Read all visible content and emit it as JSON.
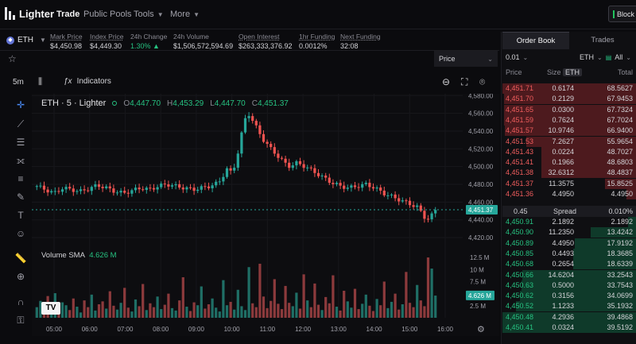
{
  "nav": {
    "brand": "Lighter",
    "items": [
      "Trade",
      "Public Pools",
      "Tools",
      "More"
    ],
    "block_button": "Block"
  },
  "market": {
    "symbol": "ETH",
    "stats": [
      {
        "label": "Mark Price",
        "value": "$4,450.98"
      },
      {
        "label": "Index Price",
        "value": "$4,449.30"
      },
      {
        "label": "24h Change",
        "value": "1.30% ▲"
      },
      {
        "label": "24h Volume",
        "value": "$1,506,572,594.69"
      },
      {
        "label": "Open Interest",
        "value": "$263,333,376.92"
      },
      {
        "label": "1hr Funding",
        "value": "0.0012%"
      },
      {
        "label": "Next Funding",
        "value": "32:08"
      }
    ],
    "price_select": "Price"
  },
  "chart_toolbar": {
    "timeframe": "5m",
    "indicators_label": "Indicators"
  },
  "chart_data": {
    "type": "candlestick",
    "title": "ETH · 5 · Lighter",
    "ohlc_labels": {
      "o": "O",
      "h": "H",
      "l": "L",
      "c": "C"
    },
    "ohlc_values": {
      "o": "4,447.70",
      "h": "4,453.29",
      "l": "4,447.70",
      "c": "4,451.37"
    },
    "current_price": "4,451.37",
    "price_ticks": [
      "4,580.00",
      "4,560.00",
      "4,540.00",
      "4,520.00",
      "4,500.00",
      "4,480.00",
      "4,460.00",
      "4,440.00",
      "4,420.00"
    ],
    "price_range": [
      4412,
      4582
    ],
    "time_ticks": [
      "05:00",
      "06:00",
      "07:00",
      "08:00",
      "09:00",
      "10:00",
      "11:00",
      "12:00",
      "13:00",
      "14:00",
      "15:00",
      "16:00"
    ],
    "volume_label": "Volume SMA",
    "volume_sma": "4.626 M",
    "volume_ticks": [
      "12.5 M",
      "10 M",
      "7.5 M",
      "5 M",
      "2.5 M"
    ],
    "volume_current": "4.626 M",
    "volume_range": [
      0,
      13.5
    ],
    "close_path": [
      [
        0,
        4478
      ],
      [
        4,
        4474
      ],
      [
        8,
        4470
      ],
      [
        12,
        4476
      ],
      [
        16,
        4474
      ],
      [
        20,
        4472
      ],
      [
        24,
        4475
      ],
      [
        28,
        4479
      ],
      [
        32,
        4476
      ],
      [
        36,
        4472
      ],
      [
        40,
        4470
      ],
      [
        44,
        4473
      ],
      [
        48,
        4476
      ],
      [
        52,
        4474
      ],
      [
        56,
        4478
      ],
      [
        60,
        4480
      ],
      [
        64,
        4478
      ],
      [
        68,
        4476
      ],
      [
        72,
        4474
      ],
      [
        76,
        4476
      ],
      [
        80,
        4478
      ],
      [
        84,
        4482
      ],
      [
        86,
        4490
      ],
      [
        88,
        4498
      ],
      [
        90,
        4492
      ],
      [
        92,
        4506
      ],
      [
        94,
        4530
      ],
      [
        96,
        4555
      ],
      [
        97,
        4548
      ],
      [
        98,
        4560
      ],
      [
        100,
        4550
      ],
      [
        104,
        4532
      ],
      [
        108,
        4520
      ],
      [
        112,
        4510
      ],
      [
        116,
        4500
      ],
      [
        120,
        4504
      ],
      [
        124,
        4500
      ],
      [
        128,
        4494
      ],
      [
        132,
        4488
      ],
      [
        136,
        4482
      ],
      [
        140,
        4478
      ],
      [
        144,
        4476
      ],
      [
        148,
        4478
      ],
      [
        152,
        4480
      ],
      [
        156,
        4476
      ],
      [
        160,
        4470
      ],
      [
        164,
        4466
      ],
      [
        168,
        4462
      ],
      [
        172,
        4458
      ],
      [
        176,
        4454
      ],
      [
        178,
        4446
      ],
      [
        180,
        4440
      ],
      [
        182,
        4444
      ],
      [
        184,
        4451
      ]
    ],
    "volume_bars": [
      2.2,
      3.5,
      1.2,
      4.5,
      2.0,
      5.1,
      1.4,
      3.2,
      2.6,
      1.6,
      4.0,
      2.3,
      1.1,
      3.6,
      2.2,
      4.8,
      1.5,
      2.8,
      3.4,
      1.9,
      5.5,
      2.5,
      1.7,
      3.1,
      6.2,
      2.1,
      1.3,
      3.8,
      2.4,
      7.0,
      1.6,
      3.0,
      2.2,
      4.4,
      1.8,
      2.7,
      5.0,
      2.0,
      1.5,
      3.6,
      8.4,
      2.3,
      1.4,
      3.2,
      2.6,
      6.5,
      1.9,
      2.8,
      4.0,
      2.1,
      1.3,
      7.8,
      2.6,
      3.3,
      1.7,
      5.8,
      2.4,
      1.6,
      10.5,
      3.0,
      2.2,
      11.2,
      4.4,
      2.0,
      3.5,
      8.0,
      2.9,
      1.8,
      6.6,
      3.1,
      2.4,
      5.2,
      1.9,
      9.0,
      3.6,
      2.2,
      7.1,
      2.7,
      1.6,
      4.3,
      3.0,
      8.8,
      2.3,
      1.5,
      5.6,
      3.4,
      2.1,
      6.0,
      1.8,
      2.9,
      4.8,
      2.5,
      1.4,
      3.9,
      2.6,
      7.5,
      2.0,
      3.3,
      5.0,
      1.7,
      2.8,
      9.5,
      3.1,
      2.2,
      6.8,
      3.6,
      2.4,
      12.5,
      10.2,
      4.6
    ]
  },
  "orderbook": {
    "tabs": [
      "Order Book",
      "Trades"
    ],
    "tick": "0.01",
    "unit": "ETH",
    "filter": "All",
    "headers": {
      "price": "Price",
      "size": "Size",
      "size_unit": "ETH",
      "total": "Total"
    },
    "asks": [
      {
        "price": "4,451.71",
        "size": "0.6174",
        "total": "68.5627",
        "depth": 1.0
      },
      {
        "price": "4,451.70",
        "size": "0.2129",
        "total": "67.9453",
        "depth": 0.99
      },
      {
        "price": "4,451.65",
        "size": "0.0300",
        "total": "67.7324",
        "depth": 0.99
      },
      {
        "price": "4,451.59",
        "size": "0.7624",
        "total": "67.7024",
        "depth": 0.99
      },
      {
        "price": "4,451.57",
        "size": "10.9746",
        "total": "66.9400",
        "depth": 0.98
      },
      {
        "price": "4,451.53",
        "size": "7.2627",
        "total": "55.9654",
        "depth": 0.82
      },
      {
        "price": "4,451.43",
        "size": "0.0224",
        "total": "48.7027",
        "depth": 0.71
      },
      {
        "price": "4,451.41",
        "size": "0.1966",
        "total": "48.6803",
        "depth": 0.71
      },
      {
        "price": "4,451.38",
        "size": "32.6312",
        "total": "48.4837",
        "depth": 0.71
      },
      {
        "price": "4,451.37",
        "size": "11.3575",
        "total": "15.8525",
        "depth": 0.23
      },
      {
        "price": "4,451.36",
        "size": "4.4950",
        "total": "4.4950",
        "depth": 0.07
      }
    ],
    "spread": {
      "value": "0.45",
      "label": "Spread",
      "pct": "0.010%"
    },
    "bids": [
      {
        "price": "4,450.91",
        "size": "2.1892",
        "total": "2.1892",
        "depth": 0.06
      },
      {
        "price": "4,450.90",
        "size": "11.2350",
        "total": "13.4242",
        "depth": 0.34
      },
      {
        "price": "4,450.89",
        "size": "4.4950",
        "total": "17.9192",
        "depth": 0.46
      },
      {
        "price": "4,450.85",
        "size": "0.4493",
        "total": "18.3685",
        "depth": 0.47
      },
      {
        "price": "4,450.68",
        "size": "0.2654",
        "total": "18.6339",
        "depth": 0.47
      },
      {
        "price": "4,450.66",
        "size": "14.6204",
        "total": "33.2543",
        "depth": 0.85
      },
      {
        "price": "4,450.63",
        "size": "0.5000",
        "total": "33.7543",
        "depth": 0.86
      },
      {
        "price": "4,450.62",
        "size": "0.3156",
        "total": "34.0699",
        "depth": 0.87
      },
      {
        "price": "4,450.52",
        "size": "1.1233",
        "total": "35.1932",
        "depth": 0.9
      },
      {
        "price": "4,450.48",
        "size": "4.2936",
        "total": "39.4868",
        "depth": 1.0
      },
      {
        "price": "4,450.41",
        "size": "0.0324",
        "total": "39.5192",
        "depth": 1.0
      }
    ]
  }
}
